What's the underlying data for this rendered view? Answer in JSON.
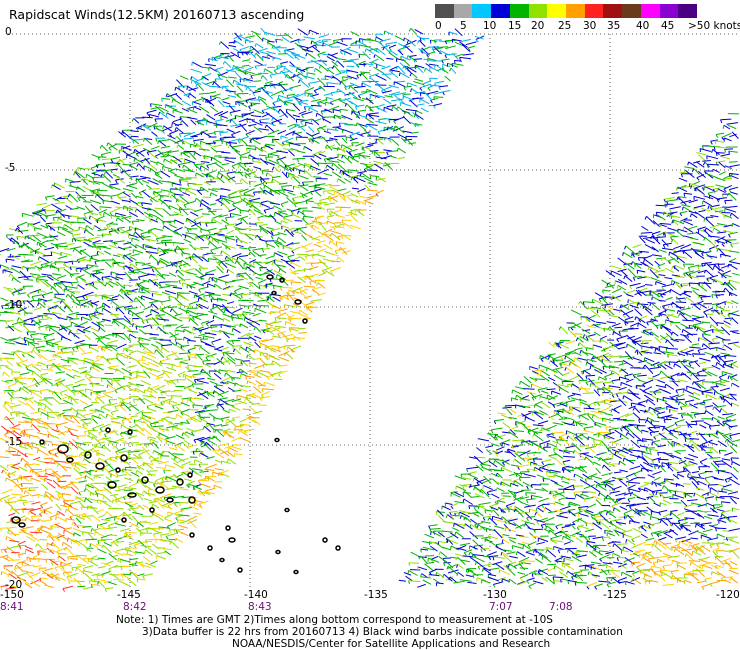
{
  "title": "Rapidscat Winds(12.5KM) 20160713 ascending",
  "legend": {
    "labels": [
      "0",
      "5",
      "10",
      "15",
      "20",
      "25",
      "30",
      "35",
      "40",
      "45",
      ">50 knots"
    ],
    "colors": [
      "#505050",
      "#a8a8a8",
      "#00c8ff",
      "#0000d8",
      "#00b400",
      "#90e000",
      "#ffff00",
      "#ffa000",
      "#ff2020",
      "#a01010",
      "#6b3a1a",
      "#ff00ff",
      "#8a00d0",
      "#4b0082"
    ]
  },
  "axes": {
    "lat_labels": [
      "0",
      "-5",
      "-10",
      "-15",
      "-20"
    ],
    "lon_labels": [
      "-150",
      "-145",
      "-140",
      "-135",
      "-130",
      "-125",
      "-120"
    ],
    "times": [
      "8:41",
      "8:42",
      "8:43",
      "7:07",
      "7:08"
    ]
  },
  "notes": [
    "Note: 1) Times are GMT 2)Times along bottom correspond to measurement at -10S",
    "3)Data buffer is 22 hrs from 20160713 4) Black wind barbs indicate possible contamination",
    "NOAA/NESDIS/Center for Satellite Applications and Research"
  ]
}
